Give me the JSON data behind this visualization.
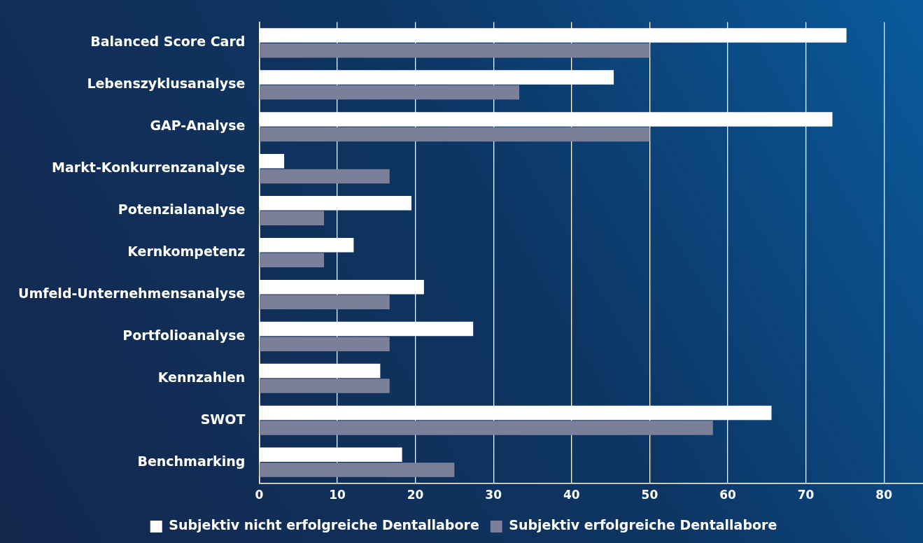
{
  "chart_data": {
    "type": "bar",
    "orientation": "horizontal",
    "categories": [
      "Balanced Score Card",
      "Lebenszyklusanalyse",
      "GAP-Analyse",
      "Markt-Konkurrenzanalyse",
      "Potenzialanalyse",
      "Kernkompetenz",
      "Umfeld-Unternehmensanalyse",
      "Portfolioanalyse",
      "Kennzahlen",
      "SWOT",
      "Benchmarking"
    ],
    "series": [
      {
        "name": "Subjektiv nicht erfolgreiche Dentallabore",
        "color": "#ffffff",
        "values": [
          75.2,
          45.4,
          73.4,
          3.2,
          19.5,
          12.1,
          21.1,
          27.4,
          15.5,
          65.6,
          18.3
        ]
      },
      {
        "name": "Subjektiv erfolgreiche Dentallabore",
        "color": "#7b7f99",
        "values": [
          50,
          33.3,
          50,
          16.7,
          8.3,
          8.3,
          16.7,
          16.7,
          16.7,
          58.1,
          25
        ]
      }
    ],
    "xlim": [
      0,
      85
    ],
    "xticks": [
      0,
      10,
      20,
      30,
      40,
      50,
      60,
      70,
      80
    ],
    "grid": "x",
    "legend": "bottom"
  }
}
